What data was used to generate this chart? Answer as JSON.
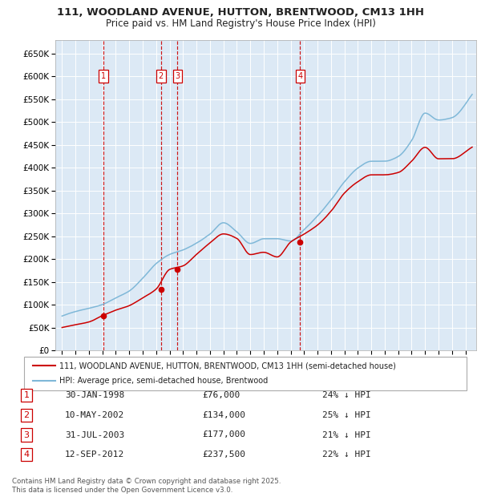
{
  "title_line1": "111, WOODLAND AVENUE, HUTTON, BRENTWOOD, CM13 1HH",
  "title_line2": "Price paid vs. HM Land Registry's House Price Index (HPI)",
  "legend_red": "111, WOODLAND AVENUE, HUTTON, BRENTWOOD, CM13 1HH (semi-detached house)",
  "legend_blue": "HPI: Average price, semi-detached house, Brentwood",
  "footnote": "Contains HM Land Registry data © Crown copyright and database right 2025.\nThis data is licensed under the Open Government Licence v3.0.",
  "transactions": [
    {
      "num": 1,
      "date": "30-JAN-1998",
      "price": 76000,
      "pct": "24%",
      "x_year": 1998.08
    },
    {
      "num": 2,
      "date": "10-MAY-2002",
      "price": 134000,
      "pct": "25%",
      "x_year": 2002.36
    },
    {
      "num": 3,
      "date": "31-JUL-2003",
      "price": 177000,
      "pct": "21%",
      "x_year": 2003.58
    },
    {
      "num": 4,
      "date": "12-SEP-2012",
      "price": 237500,
      "pct": "22%",
      "x_year": 2012.71
    }
  ],
  "hpi_color": "#7fb8d8",
  "price_color": "#cc0000",
  "vline_color": "#cc0000",
  "bg_color": "#dce9f5",
  "grid_color": "#ffffff",
  "ylim": [
    0,
    680000
  ],
  "yticks": [
    0,
    50000,
    100000,
    150000,
    200000,
    250000,
    300000,
    350000,
    400000,
    450000,
    500000,
    550000,
    600000,
    650000
  ],
  "xlim_start": 1994.5,
  "xlim_end": 2025.8,
  "xticks": [
    1995,
    1996,
    1997,
    1998,
    1999,
    2000,
    2001,
    2002,
    2003,
    2004,
    2005,
    2006,
    2007,
    2008,
    2009,
    2010,
    2011,
    2012,
    2013,
    2014,
    2015,
    2016,
    2017,
    2018,
    2019,
    2020,
    2021,
    2022,
    2023,
    2024,
    2025
  ]
}
